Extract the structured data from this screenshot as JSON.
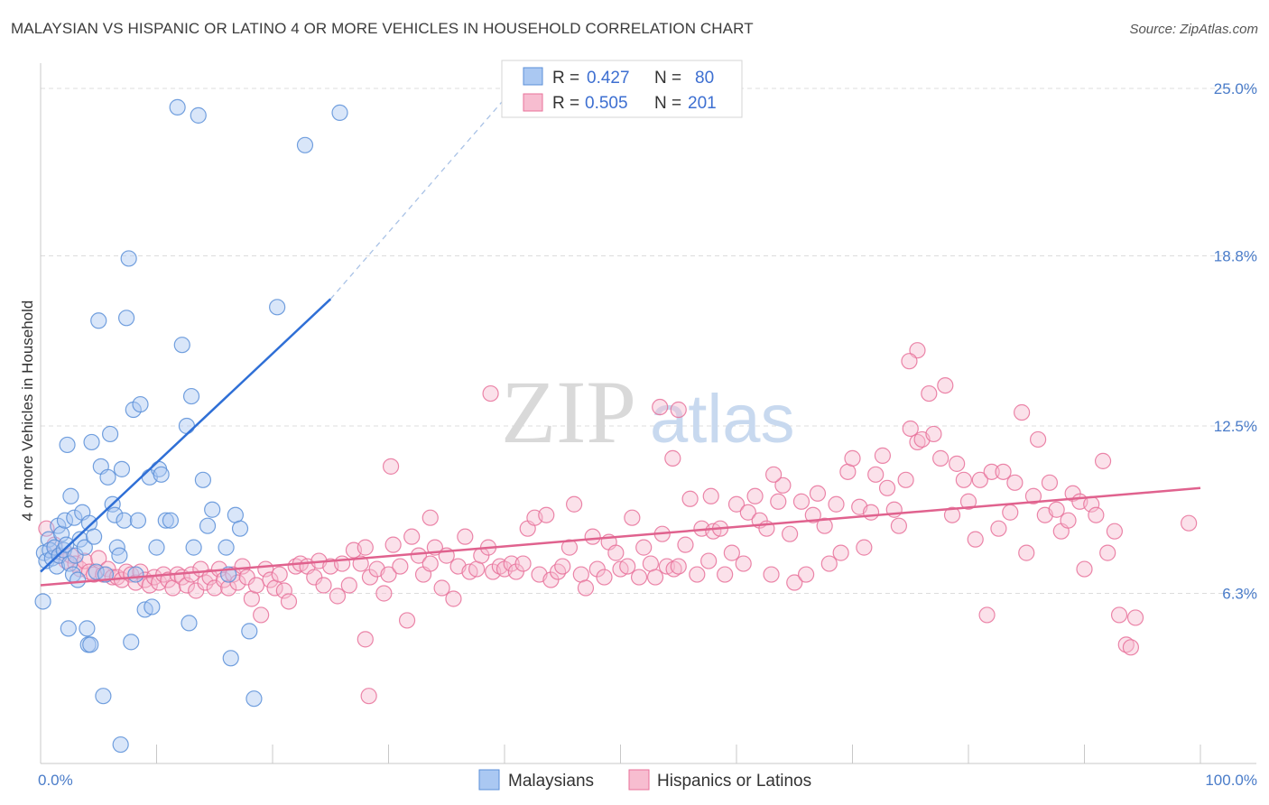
{
  "title": "MALAYSIAN VS HISPANIC OR LATINO 4 OR MORE VEHICLES IN HOUSEHOLD CORRELATION CHART",
  "source": "Source: ZipAtlas.com",
  "watermark": {
    "zip": "ZIP",
    "atlas": "atlas"
  },
  "colors": {
    "blue": "#5b8fd8",
    "blue_fill": "#aac8f2",
    "pink": "#e8719a",
    "pink_fill": "#f7bdd0",
    "tick": "#4a7cc9"
  },
  "legend": {
    "r_label": "R =",
    "n_label": "N =",
    "rows": [
      {
        "r": "0.427",
        "n": "80"
      },
      {
        "r": "0.505",
        "n": "201"
      }
    ]
  },
  "chart_data": {
    "type": "scatter",
    "ylabel": "4 or more Vehicles in Household",
    "xlim": [
      0,
      100
    ],
    "ylim": [
      0,
      25.6
    ],
    "x_ticks": [
      "0.0%",
      "100.0%"
    ],
    "y_ticks": [
      {
        "value": 6.3,
        "label": "6.3%"
      },
      {
        "value": 12.5,
        "label": "12.5%"
      },
      {
        "value": 18.8,
        "label": "18.8%"
      },
      {
        "value": 25.0,
        "label": "25.0%"
      }
    ],
    "legend_position": "bottom",
    "series": [
      {
        "name": "Malaysians",
        "color": "#5b8fd8",
        "trend": {
          "x": [
            0,
            25
          ],
          "y": [
            7.1,
            17.2
          ],
          "dashed_to": [
            42,
            25.6
          ]
        },
        "points": [
          [
            0.3,
            7.8
          ],
          [
            0.5,
            7.5
          ],
          [
            0.7,
            8.3
          ],
          [
            0.8,
            7.9
          ],
          [
            1.0,
            7.6
          ],
          [
            1.2,
            8.0
          ],
          [
            1.4,
            7.3
          ],
          [
            1.5,
            8.8
          ],
          [
            1.6,
            7.7
          ],
          [
            1.8,
            8.5
          ],
          [
            2.0,
            7.9
          ],
          [
            2.1,
            9.0
          ],
          [
            2.2,
            8.1
          ],
          [
            2.3,
            11.8
          ],
          [
            2.5,
            7.4
          ],
          [
            2.6,
            9.9
          ],
          [
            2.8,
            7.0
          ],
          [
            2.9,
            9.1
          ],
          [
            3.0,
            7.7
          ],
          [
            3.2,
            6.8
          ],
          [
            3.4,
            8.3
          ],
          [
            3.6,
            9.3
          ],
          [
            3.8,
            8.0
          ],
          [
            4.0,
            5.0
          ],
          [
            4.2,
            8.9
          ],
          [
            4.4,
            11.9
          ],
          [
            4.6,
            8.4
          ],
          [
            4.8,
            7.1
          ],
          [
            5.0,
            16.4
          ],
          [
            5.2,
            11.0
          ],
          [
            5.4,
            2.5
          ],
          [
            5.6,
            7.0
          ],
          [
            5.8,
            10.6
          ],
          [
            6.0,
            12.2
          ],
          [
            6.2,
            9.6
          ],
          [
            6.4,
            9.2
          ],
          [
            6.6,
            8.0
          ],
          [
            6.8,
            7.7
          ],
          [
            7.0,
            10.9
          ],
          [
            7.2,
            9.0
          ],
          [
            7.4,
            16.5
          ],
          [
            7.6,
            18.7
          ],
          [
            7.8,
            4.5
          ],
          [
            8.0,
            13.1
          ],
          [
            8.2,
            7.0
          ],
          [
            8.4,
            9.0
          ],
          [
            8.6,
            13.3
          ],
          [
            9.0,
            5.7
          ],
          [
            9.4,
            10.6
          ],
          [
            9.6,
            5.8
          ],
          [
            10.0,
            8.0
          ],
          [
            10.2,
            10.9
          ],
          [
            10.4,
            10.7
          ],
          [
            10.8,
            9.0
          ],
          [
            11.2,
            9.0
          ],
          [
            11.8,
            24.3
          ],
          [
            12.2,
            15.5
          ],
          [
            12.6,
            12.5
          ],
          [
            12.8,
            5.2
          ],
          [
            13.0,
            13.6
          ],
          [
            13.2,
            8.0
          ],
          [
            13.6,
            24.0
          ],
          [
            14.0,
            10.5
          ],
          [
            2.4,
            5.0
          ],
          [
            4.1,
            4.4
          ],
          [
            4.3,
            4.4
          ],
          [
            6.9,
            0.7
          ],
          [
            14.4,
            8.8
          ],
          [
            14.8,
            9.4
          ],
          [
            16.0,
            8.0
          ],
          [
            16.4,
            3.9
          ],
          [
            16.8,
            9.2
          ],
          [
            17.2,
            8.7
          ],
          [
            18.0,
            4.9
          ],
          [
            16.2,
            7.0
          ],
          [
            18.4,
            2.4
          ],
          [
            20.4,
            16.9
          ],
          [
            22.8,
            22.9
          ],
          [
            25.8,
            24.1
          ],
          [
            0.2,
            6.0
          ]
        ],
        "marker_extras": []
      },
      {
        "name": "Hispanics or Latinos",
        "color": "#e8719a",
        "trend": {
          "x": [
            0,
            100
          ],
          "y": [
            6.6,
            10.2
          ]
        },
        "points": [
          [
            0.5,
            8.7
          ],
          [
            1.2,
            8.1
          ],
          [
            1.6,
            7.7
          ],
          [
            2.2,
            7.5
          ],
          [
            2.6,
            7.7
          ],
          [
            3.0,
            7.4
          ],
          [
            3.4,
            7.2
          ],
          [
            3.8,
            7.5
          ],
          [
            4.2,
            7.1
          ],
          [
            4.6,
            7.0
          ],
          [
            5.0,
            7.6
          ],
          [
            5.4,
            7.0
          ],
          [
            5.8,
            7.2
          ],
          [
            6.2,
            6.9
          ],
          [
            6.6,
            6.9
          ],
          [
            7.0,
            6.8
          ],
          [
            7.4,
            7.1
          ],
          [
            7.8,
            7.0
          ],
          [
            8.2,
            6.7
          ],
          [
            8.6,
            7.1
          ],
          [
            9.0,
            6.8
          ],
          [
            9.4,
            6.6
          ],
          [
            9.8,
            6.9
          ],
          [
            10.2,
            6.7
          ],
          [
            10.6,
            7.0
          ],
          [
            11.0,
            6.8
          ],
          [
            11.4,
            6.5
          ],
          [
            11.8,
            7.0
          ],
          [
            12.2,
            6.9
          ],
          [
            12.6,
            6.6
          ],
          [
            13.0,
            7.0
          ],
          [
            13.4,
            6.4
          ],
          [
            13.8,
            7.2
          ],
          [
            14.2,
            6.7
          ],
          [
            14.6,
            6.9
          ],
          [
            15.0,
            6.5
          ],
          [
            15.4,
            7.2
          ],
          [
            15.8,
            6.8
          ],
          [
            16.2,
            6.5
          ],
          [
            16.6,
            7.0
          ],
          [
            17.0,
            6.7
          ],
          [
            17.4,
            7.3
          ],
          [
            17.8,
            6.9
          ],
          [
            18.2,
            6.1
          ],
          [
            18.6,
            6.6
          ],
          [
            19.0,
            5.5
          ],
          [
            19.4,
            7.2
          ],
          [
            19.8,
            6.8
          ],
          [
            20.2,
            6.5
          ],
          [
            20.6,
            7.0
          ],
          [
            21.0,
            6.4
          ],
          [
            21.4,
            6.0
          ],
          [
            22.0,
            7.3
          ],
          [
            22.4,
            7.4
          ],
          [
            23.0,
            7.3
          ],
          [
            23.6,
            6.9
          ],
          [
            24.0,
            7.5
          ],
          [
            24.4,
            6.6
          ],
          [
            25.0,
            7.3
          ],
          [
            25.6,
            6.2
          ],
          [
            26.0,
            7.4
          ],
          [
            26.6,
            6.6
          ],
          [
            27.0,
            7.9
          ],
          [
            27.6,
            7.4
          ],
          [
            28.0,
            8.0
          ],
          [
            28.4,
            6.9
          ],
          [
            29.0,
            7.2
          ],
          [
            29.6,
            6.3
          ],
          [
            30.0,
            7.0
          ],
          [
            30.4,
            8.1
          ],
          [
            31.0,
            7.3
          ],
          [
            31.6,
            5.3
          ],
          [
            32.0,
            8.4
          ],
          [
            32.6,
            7.7
          ],
          [
            33.0,
            7.0
          ],
          [
            33.6,
            7.4
          ],
          [
            34.0,
            8.0
          ],
          [
            34.6,
            6.5
          ],
          [
            35.0,
            7.7
          ],
          [
            35.6,
            6.1
          ],
          [
            36.0,
            7.3
          ],
          [
            36.6,
            8.4
          ],
          [
            37.0,
            7.1
          ],
          [
            37.6,
            7.2
          ],
          [
            38.0,
            7.7
          ],
          [
            38.6,
            8.0
          ],
          [
            39.0,
            7.1
          ],
          [
            39.6,
            7.3
          ],
          [
            40.0,
            7.2
          ],
          [
            40.6,
            7.4
          ],
          [
            41.0,
            7.1
          ],
          [
            41.6,
            7.4
          ],
          [
            42.0,
            8.7
          ],
          [
            42.6,
            9.1
          ],
          [
            43.0,
            7.0
          ],
          [
            43.6,
            9.2
          ],
          [
            44.0,
            6.8
          ],
          [
            44.6,
            7.1
          ],
          [
            45.0,
            7.3
          ],
          [
            45.6,
            8.0
          ],
          [
            46.0,
            9.6
          ],
          [
            46.6,
            7.0
          ],
          [
            47.0,
            6.5
          ],
          [
            47.6,
            8.4
          ],
          [
            48.0,
            7.2
          ],
          [
            48.6,
            6.9
          ],
          [
            49.0,
            8.2
          ],
          [
            49.6,
            7.8
          ],
          [
            50.0,
            7.2
          ],
          [
            50.6,
            7.3
          ],
          [
            51.0,
            9.1
          ],
          [
            51.6,
            6.9
          ],
          [
            52.0,
            8.0
          ],
          [
            52.6,
            7.4
          ],
          [
            53.0,
            6.9
          ],
          [
            53.6,
            8.5
          ],
          [
            54.0,
            7.3
          ],
          [
            54.6,
            7.2
          ],
          [
            55.0,
            7.3
          ],
          [
            55.6,
            8.1
          ],
          [
            56.0,
            9.8
          ],
          [
            56.6,
            7.0
          ],
          [
            57.0,
            8.7
          ],
          [
            57.6,
            7.5
          ],
          [
            58.0,
            8.6
          ],
          [
            58.6,
            8.7
          ],
          [
            59.0,
            7.0
          ],
          [
            59.6,
            7.8
          ],
          [
            60.0,
            9.6
          ],
          [
            60.6,
            7.4
          ],
          [
            61.0,
            9.3
          ],
          [
            61.6,
            9.9
          ],
          [
            62.0,
            9.0
          ],
          [
            62.6,
            8.7
          ],
          [
            63.0,
            7.0
          ],
          [
            63.6,
            9.7
          ],
          [
            64.0,
            10.3
          ],
          [
            64.6,
            8.5
          ],
          [
            65.0,
            6.7
          ],
          [
            65.6,
            9.7
          ],
          [
            66.0,
            7.0
          ],
          [
            66.6,
            9.2
          ],
          [
            67.0,
            10.0
          ],
          [
            67.6,
            8.8
          ],
          [
            68.0,
            7.4
          ],
          [
            68.6,
            9.6
          ],
          [
            69.0,
            7.8
          ],
          [
            69.6,
            10.8
          ],
          [
            70.0,
            11.3
          ],
          [
            70.6,
            9.5
          ],
          [
            71.0,
            8.0
          ],
          [
            71.6,
            9.3
          ],
          [
            72.0,
            10.7
          ],
          [
            72.6,
            11.4
          ],
          [
            73.0,
            10.2
          ],
          [
            73.6,
            9.4
          ],
          [
            74.0,
            8.8
          ],
          [
            74.6,
            10.5
          ],
          [
            75.0,
            12.4
          ],
          [
            75.6,
            11.9
          ],
          [
            76.0,
            12.0
          ],
          [
            76.6,
            13.7
          ],
          [
            77.0,
            12.2
          ],
          [
            77.6,
            11.3
          ],
          [
            78.0,
            14.0
          ],
          [
            78.6,
            9.2
          ],
          [
            79.0,
            11.1
          ],
          [
            79.6,
            10.5
          ],
          [
            80.0,
            9.7
          ],
          [
            80.6,
            8.3
          ],
          [
            81.0,
            10.5
          ],
          [
            81.6,
            5.5
          ],
          [
            82.0,
            10.8
          ],
          [
            82.6,
            8.7
          ],
          [
            83.0,
            10.8
          ],
          [
            83.6,
            9.3
          ],
          [
            84.0,
            10.4
          ],
          [
            84.6,
            13.0
          ],
          [
            85.0,
            7.8
          ],
          [
            85.6,
            9.9
          ],
          [
            86.0,
            12.0
          ],
          [
            86.6,
            9.2
          ],
          [
            87.0,
            10.4
          ],
          [
            87.6,
            9.4
          ],
          [
            88.0,
            8.6
          ],
          [
            88.6,
            9.0
          ],
          [
            89.0,
            10.0
          ],
          [
            89.6,
            9.7
          ],
          [
            90.0,
            7.2
          ],
          [
            90.6,
            9.6
          ],
          [
            91.0,
            9.2
          ],
          [
            91.6,
            11.2
          ],
          [
            92.0,
            7.8
          ],
          [
            92.6,
            8.6
          ],
          [
            93.0,
            5.5
          ],
          [
            93.6,
            4.4
          ],
          [
            94.0,
            4.3
          ],
          [
            94.4,
            5.4
          ],
          [
            99.0,
            8.9
          ],
          [
            54.5,
            11.3
          ],
          [
            53.4,
            13.2
          ],
          [
            38.8,
            13.7
          ],
          [
            33.6,
            9.1
          ],
          [
            30.2,
            11.0
          ],
          [
            28.3,
            2.5
          ],
          [
            28.0,
            4.6
          ],
          [
            55.0,
            13.1
          ],
          [
            63.2,
            10.7
          ],
          [
            75.6,
            15.3
          ],
          [
            74.9,
            14.9
          ],
          [
            57.8,
            9.9
          ]
        ]
      }
    ]
  },
  "bottom_legend": [
    "Malaysians",
    "Hispanics or Latinos"
  ]
}
